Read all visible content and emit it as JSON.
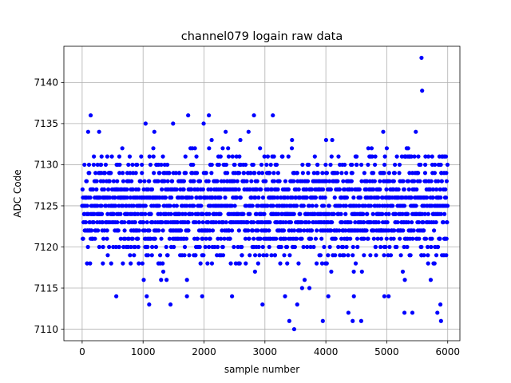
{
  "chart_data": {
    "type": "scatter",
    "title": "channel079 logain raw data",
    "xlabel": "sample number",
    "ylabel": "ADC Code",
    "xlim": [
      -300,
      6200
    ],
    "ylim": [
      7108.6,
      7144.4
    ],
    "xticks": [
      0,
      1000,
      2000,
      3000,
      4000,
      5000,
      6000
    ],
    "yticks": [
      7110,
      7115,
      7120,
      7125,
      7130,
      7135,
      7140
    ],
    "xtick_labels": [
      "0",
      "1000",
      "2000",
      "3000",
      "4000",
      "5000",
      "6000"
    ],
    "ytick_labels": [
      "7110",
      "7115",
      "7120",
      "7125",
      "7130",
      "7135",
      "7140"
    ],
    "grid": true,
    "marker_color": "#0000ff",
    "series": [
      {
        "n_samples": 6000,
        "level_min": 7116,
        "level_max": 7135,
        "dense_min": 7118,
        "dense_max": 7132,
        "outliers": [
          {
            "x": 5570,
            "y": 7143
          },
          {
            "x": 5580,
            "y": 7139
          },
          {
            "x": 3480,
            "y": 7110
          },
          {
            "x": 3400,
            "y": 7111
          },
          {
            "x": 3950,
            "y": 7111
          },
          {
            "x": 4440,
            "y": 7111
          },
          {
            "x": 4580,
            "y": 7111
          },
          {
            "x": 5890,
            "y": 7111
          },
          {
            "x": 3530,
            "y": 7113
          },
          {
            "x": 2960,
            "y": 7113
          },
          {
            "x": 1100,
            "y": 7113
          },
          {
            "x": 1450,
            "y": 7113
          },
          {
            "x": 5880,
            "y": 7113
          },
          {
            "x": 4370,
            "y": 7112
          },
          {
            "x": 5290,
            "y": 7112
          },
          {
            "x": 5420,
            "y": 7112
          },
          {
            "x": 5830,
            "y": 7112
          },
          {
            "x": 560,
            "y": 7114
          },
          {
            "x": 1060,
            "y": 7114
          },
          {
            "x": 1720,
            "y": 7114
          },
          {
            "x": 1970,
            "y": 7114
          },
          {
            "x": 2460,
            "y": 7114
          },
          {
            "x": 3330,
            "y": 7114
          },
          {
            "x": 4040,
            "y": 7114
          },
          {
            "x": 4460,
            "y": 7114
          },
          {
            "x": 4960,
            "y": 7114
          },
          {
            "x": 5030,
            "y": 7114
          },
          {
            "x": 3610,
            "y": 7115
          },
          {
            "x": 3730,
            "y": 7115
          },
          {
            "x": 140,
            "y": 7136
          },
          {
            "x": 1740,
            "y": 7136
          },
          {
            "x": 2080,
            "y": 7136
          },
          {
            "x": 2820,
            "y": 7136
          },
          {
            "x": 3130,
            "y": 7136
          }
        ]
      }
    ]
  }
}
